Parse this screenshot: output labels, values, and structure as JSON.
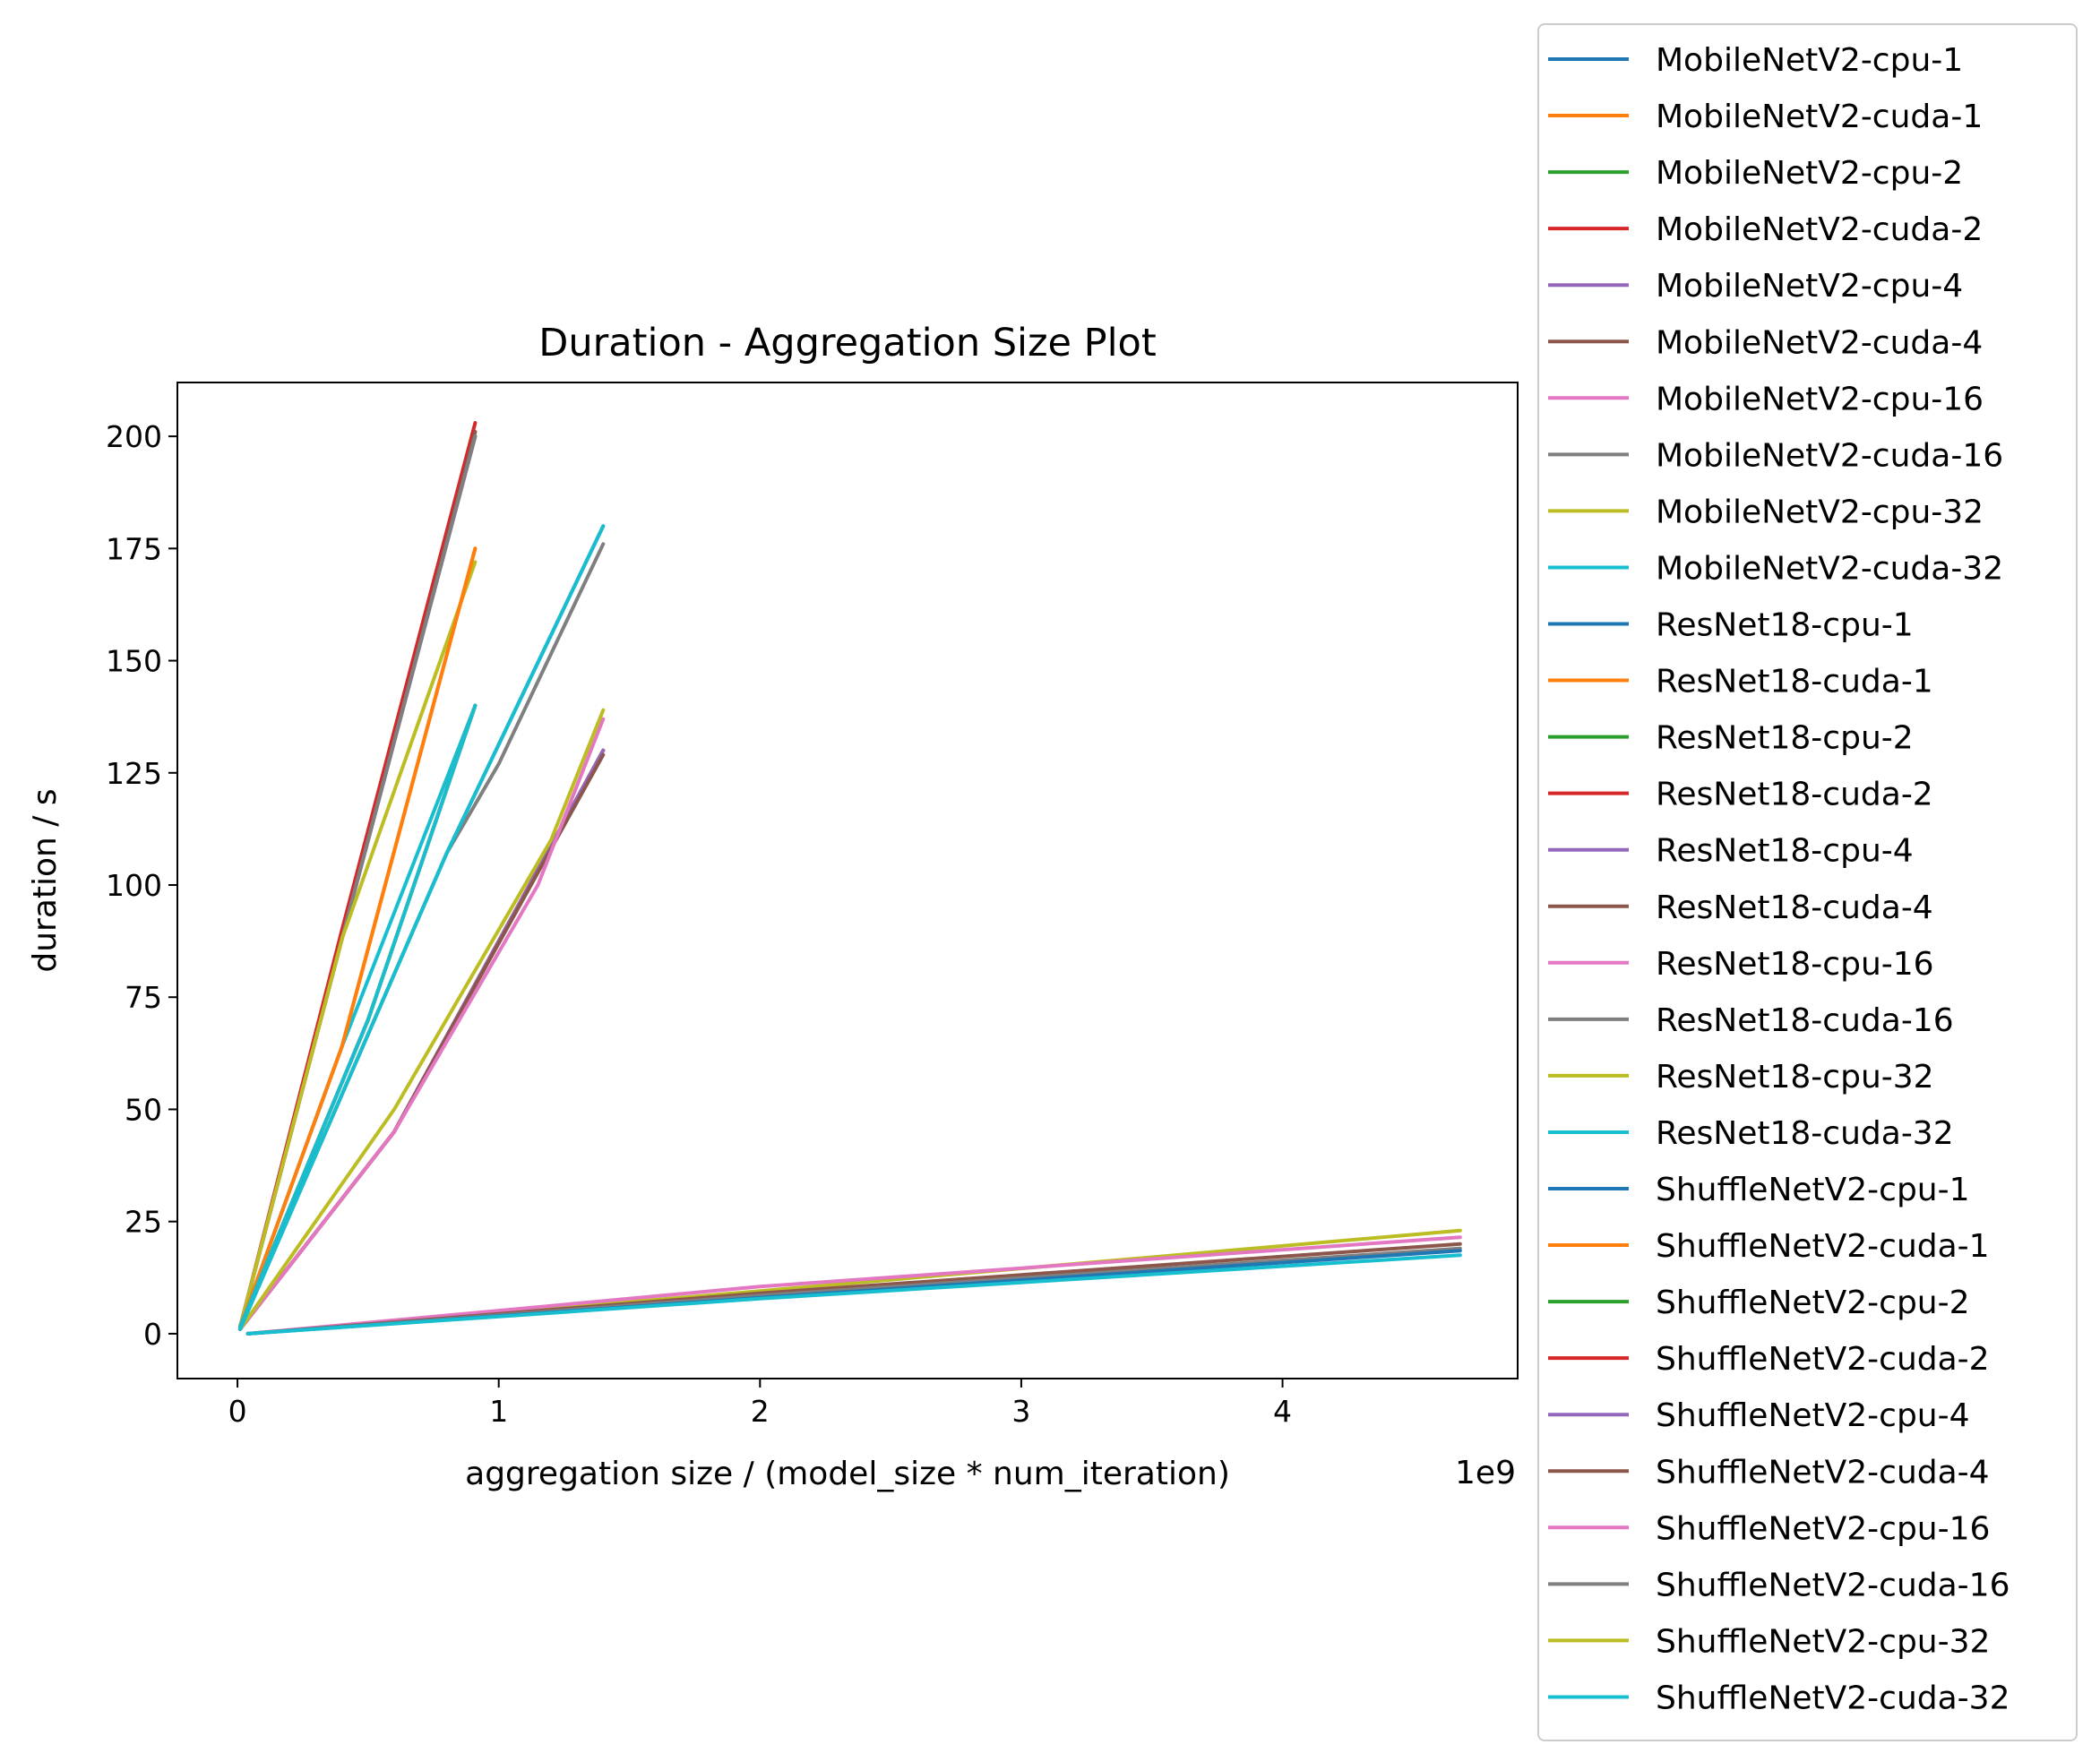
{
  "chart_data": {
    "type": "line",
    "title": "Duration - Aggregation Size Plot",
    "xlabel": "aggregation size / (model_size * num_iteration)",
    "ylabel": "duration / s",
    "x_offset_text": "1e9",
    "xlim": [
      -0.23,
      4.9
    ],
    "ylim": [
      -10,
      212
    ],
    "x_ticks": [
      0,
      1,
      2,
      3,
      4
    ],
    "x_tick_labels": [
      "0",
      "1",
      "2",
      "3",
      "4"
    ],
    "y_ticks": [
      0,
      25,
      50,
      75,
      100,
      125,
      150,
      175,
      200
    ],
    "y_tick_labels": [
      "0",
      "25",
      "50",
      "75",
      "100",
      "125",
      "150",
      "175",
      "200"
    ],
    "grid": false,
    "legend_position": "outside-right",
    "series": [
      {
        "name": "MobileNetV2-cpu-1",
        "color": "#1f77b4",
        "points": [
          [
            0.01,
            1.5
          ],
          [
            0.4,
            88
          ],
          [
            0.91,
            200
          ]
        ]
      },
      {
        "name": "MobileNetV2-cuda-1",
        "color": "#ff7f0e",
        "points": [
          [
            0.01,
            1.5
          ],
          [
            0.4,
            64
          ],
          [
            0.91,
            175
          ]
        ]
      },
      {
        "name": "MobileNetV2-cpu-2",
        "color": "#2ca02c",
        "points": [
          [
            0.01,
            1.5
          ],
          [
            0.4,
            88
          ],
          [
            0.91,
            200
          ]
        ]
      },
      {
        "name": "MobileNetV2-cuda-2",
        "color": "#d62728",
        "points": [
          [
            0.01,
            1.5
          ],
          [
            0.4,
            90
          ],
          [
            0.91,
            203
          ]
        ]
      },
      {
        "name": "MobileNetV2-cpu-4",
        "color": "#9467bd",
        "points": [
          [
            0.01,
            1.5
          ],
          [
            0.4,
            88
          ],
          [
            0.91,
            200
          ]
        ]
      },
      {
        "name": "MobileNetV2-cuda-4",
        "color": "#8c564b",
        "points": [
          [
            0.01,
            1.5
          ],
          [
            0.4,
            88
          ],
          [
            0.91,
            201
          ]
        ]
      },
      {
        "name": "MobileNetV2-cpu-16",
        "color": "#e377c2",
        "points": [
          [
            0.01,
            1.5
          ],
          [
            0.4,
            88
          ],
          [
            0.91,
            200
          ]
        ]
      },
      {
        "name": "MobileNetV2-cuda-16",
        "color": "#7f7f7f",
        "points": [
          [
            0.01,
            1.5
          ],
          [
            0.4,
            88
          ],
          [
            0.91,
            200
          ]
        ]
      },
      {
        "name": "MobileNetV2-cpu-32",
        "color": "#bcbd22",
        "points": [
          [
            0.01,
            1.5
          ],
          [
            0.4,
            88
          ],
          [
            0.91,
            172
          ]
        ]
      },
      {
        "name": "MobileNetV2-cuda-32",
        "color": "#17becf",
        "points": [
          [
            0.01,
            1.5
          ],
          [
            0.4,
            64
          ],
          [
            0.91,
            140
          ]
        ]
      },
      {
        "name": "ResNet18-cpu-1",
        "color": "#1f77b4",
        "points": [
          [
            0.01,
            1.5
          ],
          [
            0.5,
            70
          ],
          [
            0.91,
            140
          ]
        ]
      },
      {
        "name": "ResNet18-cuda-1",
        "color": "#ff7f0e",
        "points": [
          [
            0.01,
            1.5
          ],
          [
            0.4,
            64
          ],
          [
            0.91,
            175
          ]
        ]
      },
      {
        "name": "ResNet18-cpu-2",
        "color": "#2ca02c",
        "points": [
          [
            0.01,
            1.5
          ],
          [
            0.5,
            70
          ],
          [
            0.91,
            140
          ]
        ]
      },
      {
        "name": "ResNet18-cuda-2",
        "color": "#d62728",
        "points": [
          [
            0.01,
            1.5
          ],
          [
            0.5,
            70
          ],
          [
            0.91,
            140
          ]
        ]
      },
      {
        "name": "ResNet18-cpu-4",
        "color": "#9467bd",
        "points": [
          [
            0.01,
            1.5
          ],
          [
            0.5,
            70
          ],
          [
            0.91,
            140
          ]
        ]
      },
      {
        "name": "ResNet18-cuda-4",
        "color": "#8c564b",
        "points": [
          [
            0.01,
            1.5
          ],
          [
            0.5,
            70
          ],
          [
            0.91,
            140
          ]
        ]
      },
      {
        "name": "ResNet18-cpu-16",
        "color": "#e377c2",
        "points": [
          [
            0.01,
            1.5
          ],
          [
            0.5,
            70
          ],
          [
            0.91,
            140
          ]
        ]
      },
      {
        "name": "ResNet18-cuda-16",
        "color": "#7f7f7f",
        "points": [
          [
            0.01,
            1.5
          ],
          [
            0.5,
            70
          ],
          [
            0.91,
            140
          ]
        ]
      },
      {
        "name": "ResNet18-cpu-32",
        "color": "#bcbd22",
        "points": [
          [
            0.01,
            1.5
          ],
          [
            0.5,
            70
          ],
          [
            0.91,
            140
          ]
        ]
      },
      {
        "name": "ResNet18-cuda-32",
        "color": "#17becf",
        "points": [
          [
            0.01,
            1.5
          ],
          [
            0.5,
            70
          ],
          [
            0.91,
            140
          ]
        ]
      },
      {
        "name": "ShuffleNetV2-cpu-1",
        "color": "#1f77b4",
        "points": [
          [
            0.01,
            1.0
          ],
          [
            0.8,
            107
          ],
          [
            1.4,
            180
          ]
        ]
      },
      {
        "name": "ShuffleNetV2-cuda-1",
        "color": "#ff7f0e",
        "points": [
          [
            0.01,
            1.0
          ],
          [
            0.6,
            45
          ],
          [
            1.4,
            130
          ]
        ]
      },
      {
        "name": "ShuffleNetV2-cpu-2",
        "color": "#2ca02c",
        "points": [
          [
            0.01,
            1.0
          ],
          [
            0.6,
            45
          ],
          [
            1.4,
            130
          ]
        ]
      },
      {
        "name": "ShuffleNetV2-cuda-2",
        "color": "#d62728",
        "points": [
          [
            0.01,
            1.0
          ],
          [
            0.6,
            45
          ],
          [
            1.4,
            130
          ]
        ]
      },
      {
        "name": "ShuffleNetV2-cpu-4",
        "color": "#9467bd",
        "points": [
          [
            0.01,
            1.0
          ],
          [
            0.6,
            45
          ],
          [
            1.4,
            130
          ]
        ]
      },
      {
        "name": "ShuffleNetV2-cuda-4",
        "color": "#8c564b",
        "points": [
          [
            0.01,
            1.0
          ],
          [
            0.6,
            45
          ],
          [
            1.4,
            129
          ]
        ]
      },
      {
        "name": "ShuffleNetV2-cpu-16",
        "color": "#e377c2",
        "points": [
          [
            0.01,
            1.0
          ],
          [
            0.6,
            45
          ],
          [
            1.15,
            100
          ],
          [
            1.4,
            137
          ]
        ]
      },
      {
        "name": "ShuffleNetV2-cuda-16",
        "color": "#7f7f7f",
        "points": [
          [
            0.01,
            1.0
          ],
          [
            0.8,
            107
          ],
          [
            1.0,
            127
          ],
          [
            1.4,
            176
          ]
        ]
      },
      {
        "name": "ShuffleNetV2-cpu-32",
        "color": "#bcbd22",
        "points": [
          [
            0.01,
            1.0
          ],
          [
            0.6,
            50
          ],
          [
            1.2,
            110
          ],
          [
            1.4,
            139
          ]
        ]
      },
      {
        "name": "ShuffleNetV2-cuda-32",
        "color": "#17becf",
        "points": [
          [
            0.01,
            1.0
          ],
          [
            0.8,
            107
          ],
          [
            1.4,
            180
          ]
        ]
      }
    ],
    "extra_lines": [
      {
        "color": "#bcbd22",
        "points": [
          [
            0.04,
            0
          ],
          [
            2.0,
            9.5
          ],
          [
            4.68,
            23
          ]
        ]
      },
      {
        "color": "#e377c2",
        "points": [
          [
            0.04,
            0
          ],
          [
            2.0,
            10.5
          ],
          [
            4.68,
            21.5
          ]
        ]
      },
      {
        "color": "#8c564b",
        "points": [
          [
            0.04,
            0
          ],
          [
            2.0,
            9
          ],
          [
            4.68,
            20
          ]
        ]
      },
      {
        "color": "#7f7f7f",
        "points": [
          [
            0.04,
            0
          ],
          [
            2.0,
            8.5
          ],
          [
            4.68,
            19
          ]
        ]
      },
      {
        "color": "#1f77b4",
        "points": [
          [
            0.04,
            0
          ],
          [
            2.0,
            8
          ],
          [
            4.68,
            18.5
          ]
        ]
      },
      {
        "color": "#17becf",
        "points": [
          [
            0.04,
            0
          ],
          [
            2.0,
            7.8
          ],
          [
            4.68,
            17.5
          ]
        ]
      }
    ]
  }
}
